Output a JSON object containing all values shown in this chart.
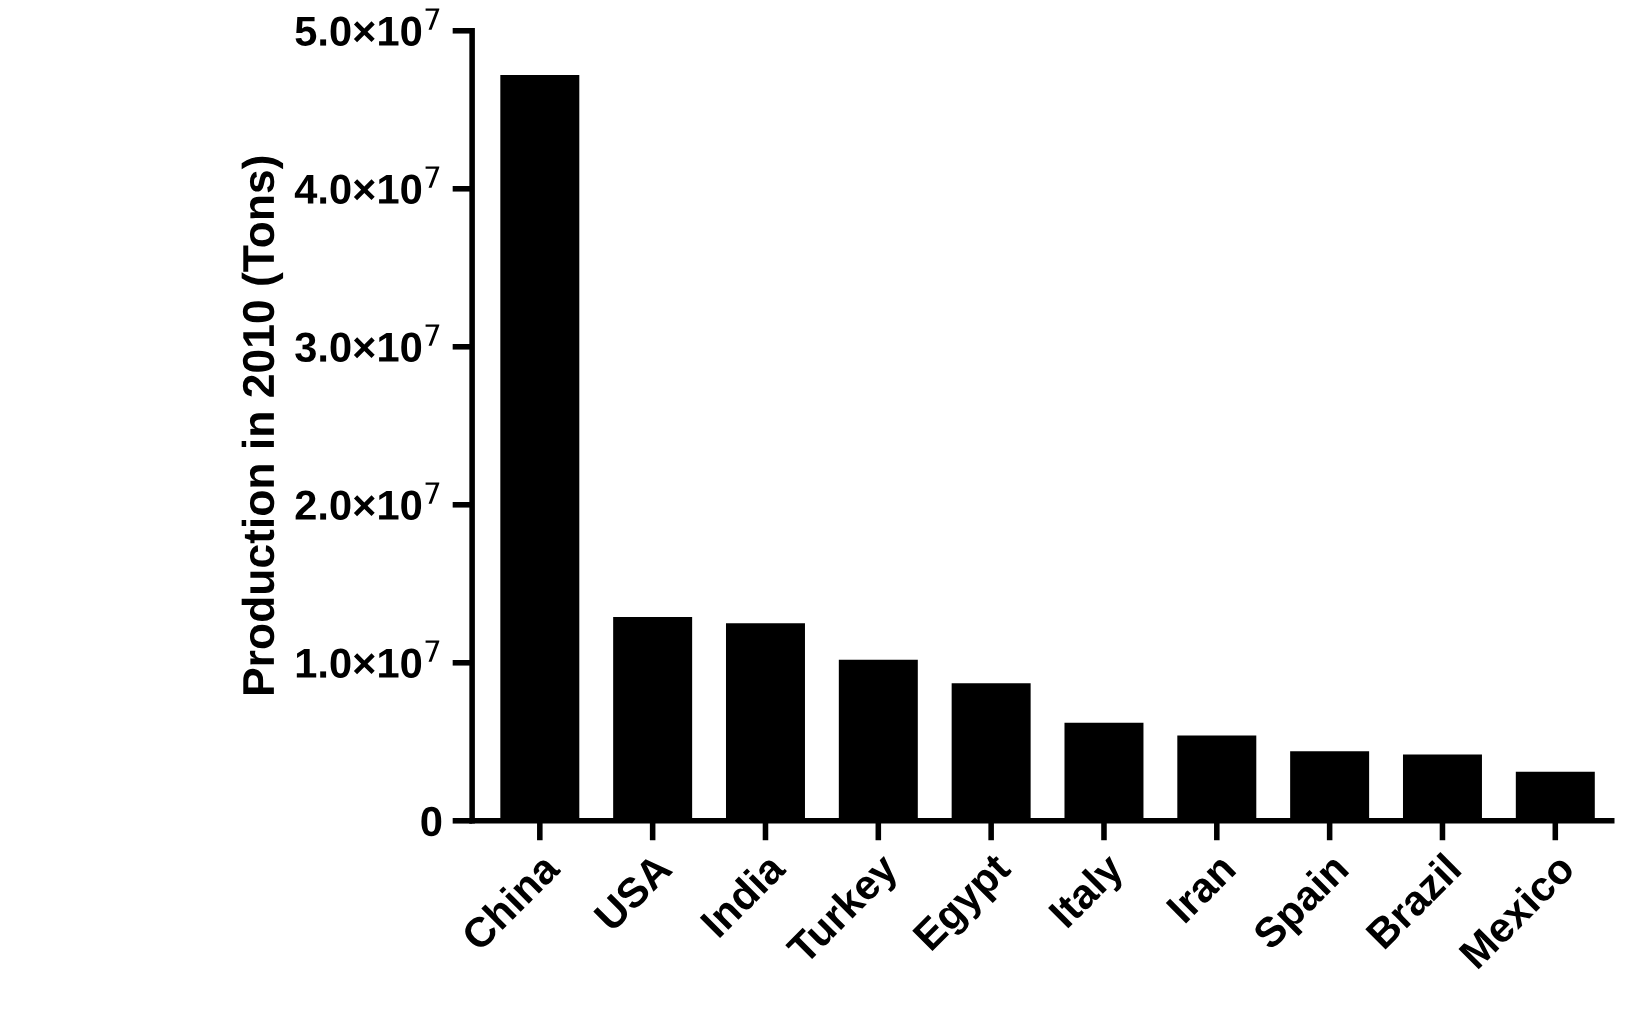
{
  "chart_data": {
    "type": "bar",
    "ylabel": "Production in 2010 (Tons)",
    "categories": [
      "China",
      "USA",
      "India",
      "Turkey",
      "Egypt",
      "Italy",
      "Iran",
      "Spain",
      "Brazil",
      "Mexico"
    ],
    "values": [
      47200000,
      12900000,
      12500000,
      10200000,
      8700000,
      6200000,
      5400000,
      4400000,
      4200000,
      3100000
    ],
    "color": "#000000",
    "ylim": [
      0,
      50000000
    ],
    "yticks": [
      0,
      {
        "value": 10000000,
        "label": "1.0×10$^{7}$"
      },
      {
        "value": 20000000,
        "label": "2.0×10$^{7}$"
      },
      {
        "value": 30000000,
        "label": "3.0×10$^{7}$"
      },
      {
        "value": 40000000,
        "label": "4.0×10$^{7}$"
      },
      {
        "value": 50000000,
        "label": "5.0×10$^{7}$"
      }
    ],
    "grid": false
  }
}
